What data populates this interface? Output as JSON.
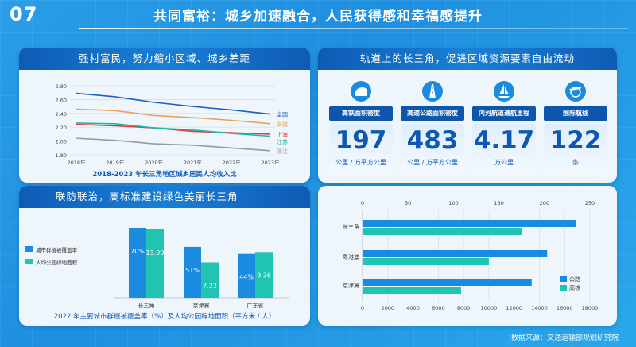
{
  "page_number": "07",
  "main_title": "共同富裕：城乡加速融合，人民获得感和幸福感提升",
  "panel1": {
    "header": "强村富民，努力缩小区域、城乡差距",
    "caption": "2018-2023 年长三角地区城乡居民人均收入比"
  },
  "panel2": {
    "header": "轨道上的长三角，促进区域资源要素自由流动",
    "metrics": [
      {
        "label": "高铁面积密度",
        "value": "197",
        "unit": "公里 / 万平方公里",
        "icon": "train-icon"
      },
      {
        "label": "高速公路面积密度",
        "value": "483",
        "unit": "公里 / 万平方公里",
        "icon": "highway-icon"
      },
      {
        "label": "内河航道通航里程",
        "value": "4.17",
        "unit": "万公里",
        "icon": "sailboat-icon"
      },
      {
        "label": "国际航线",
        "value": "122",
        "unit": "条",
        "icon": "airplane-globe-icon"
      }
    ]
  },
  "panel3": {
    "header": "联防联治，高标准建设绿色美丽长三角",
    "caption": "2022 年主要城市群植被覆盖率（%）及人均公园绿地面积（平方米 / 人）"
  },
  "source": "数据来源：交通运输部规划研究院",
  "colors": {
    "blue": "#1b8be0",
    "teal": "#20c4b0",
    "dark_blue": "#0e58b4"
  },
  "chart_data": [
    {
      "type": "line",
      "title": "2018-2023 年长三角地区城乡居民人均收入比",
      "x": [
        "2018年",
        "2019年",
        "2020年",
        "2021年",
        "2022年",
        "2023年"
      ],
      "ylim": [
        1.8,
        2.8
      ],
      "yticks": [
        "1.80",
        "2.00",
        "2.20",
        "2.40",
        "2.60",
        "2.80"
      ],
      "grid": true,
      "series": [
        {
          "name": "全国",
          "color": "#1f5fbf",
          "values": [
            2.69,
            2.64,
            2.56,
            2.5,
            2.45,
            2.39
          ]
        },
        {
          "name": "安徽",
          "color": "#e8a15a",
          "values": [
            2.46,
            2.44,
            2.37,
            2.34,
            2.3,
            2.25
          ]
        },
        {
          "name": "上海",
          "color": "#e03a3a",
          "values": [
            2.24,
            2.22,
            2.19,
            2.14,
            2.12,
            2.1
          ]
        },
        {
          "name": "江苏",
          "color": "#20b6a6",
          "values": [
            2.26,
            2.25,
            2.19,
            2.16,
            2.11,
            2.07
          ]
        },
        {
          "name": "浙江",
          "color": "#9a9a9a",
          "values": [
            2.04,
            2.01,
            1.96,
            1.94,
            1.9,
            1.86
          ]
        }
      ]
    },
    {
      "type": "bar",
      "title": "2022 年主要城市群植被覆盖率（%）及人均公园绿地面积（平方米 / 人）",
      "categories": [
        "长三角",
        "京津冀",
        "广东省"
      ],
      "legend": "left",
      "series": [
        {
          "name": "城市群植被覆盖率",
          "color": "#1b8be0",
          "values": [
            70,
            51,
            44
          ],
          "labels": [
            "70%",
            "51%",
            "44%"
          ]
        },
        {
          "name": "人均公园绿地面积",
          "color": "#20c4b0",
          "values": [
            13.99,
            7.22,
            9.36
          ],
          "labels": [
            "13.99",
            "7.22",
            "9.36"
          ]
        }
      ]
    },
    {
      "type": "bar",
      "orientation": "horizontal",
      "categories": [
        "长三角",
        "粤港澳",
        "京津冀"
      ],
      "top_axis": {
        "lim": [
          0,
          250
        ],
        "ticks": [
          "0",
          "50",
          "100",
          "150",
          "200",
          "250"
        ]
      },
      "bottom_axis": {
        "lim": [
          0,
          18000
        ],
        "ticks": [
          "0",
          "2000",
          "4000",
          "6000",
          "8000",
          "10000",
          "12000",
          "14000",
          "16000",
          "18000"
        ]
      },
      "grid": true,
      "legend": "bottom-right",
      "series": [
        {
          "name": "公路",
          "color": "#1b8be0",
          "axis": "top",
          "values": [
            235,
            203,
            186
          ]
        },
        {
          "name": "高铁",
          "color": "#20c4b0",
          "axis": "bottom",
          "values": [
            12600,
            10000,
            7800
          ]
        }
      ]
    }
  ]
}
